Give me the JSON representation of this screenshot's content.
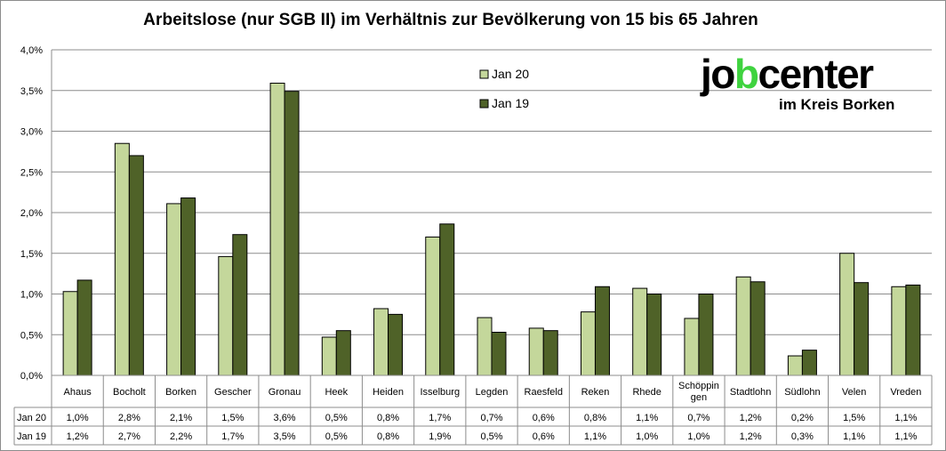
{
  "chart_data": {
    "type": "bar",
    "title": "Arbeitslose (nur SGB II) im Verhältnis zur Bevölkerung von 15 bis 65 Jahren",
    "categories": [
      "Ahaus",
      "Bocholt",
      "Borken",
      "Gescher",
      "Gronau",
      "Heek",
      "Heiden",
      "Isselburg",
      "Legden",
      "Raesfeld",
      "Reken",
      "Rhede",
      "Schöppin\ngen",
      "Stadtlohn",
      "Südlohn",
      "Velen",
      "Vreden"
    ],
    "series": [
      {
        "name": "Jan 20",
        "color": "#c4d79b",
        "values": [
          1.03,
          2.85,
          2.11,
          1.46,
          3.59,
          0.47,
          0.82,
          1.7,
          0.71,
          0.58,
          0.78,
          1.07,
          0.7,
          1.21,
          0.24,
          1.5,
          1.09
        ],
        "labels": [
          "1,0%",
          "2,8%",
          "2,1%",
          "1,5%",
          "3,6%",
          "0,5%",
          "0,8%",
          "1,7%",
          "0,7%",
          "0,6%",
          "0,8%",
          "1,1%",
          "0,7%",
          "1,2%",
          "0,2%",
          "1,5%",
          "1,1%"
        ]
      },
      {
        "name": "Jan 19",
        "color": "#4f6228",
        "values": [
          1.17,
          2.7,
          2.18,
          1.73,
          3.49,
          0.55,
          0.75,
          1.86,
          0.53,
          0.55,
          1.09,
          1.0,
          1.0,
          1.15,
          0.31,
          1.14,
          1.11
        ],
        "labels": [
          "1,2%",
          "2,7%",
          "2,2%",
          "1,7%",
          "3,5%",
          "0,5%",
          "0,8%",
          "1,9%",
          "0,5%",
          "0,6%",
          "1,1%",
          "1,0%",
          "1,0%",
          "1,2%",
          "0,3%",
          "1,1%",
          "1,1%"
        ]
      }
    ],
    "ylim": [
      0,
      4.0
    ],
    "yticks": [
      "0,0%",
      "0,5%",
      "1,0%",
      "1,5%",
      "2,0%",
      "2,5%",
      "3,0%",
      "3,5%",
      "4,0%"
    ],
    "grid": true,
    "legend_position": "top-center",
    "data_table": true
  },
  "logo": {
    "word_start": "jo",
    "word_highlight": "b",
    "word_end": "center",
    "subtitle": "im Kreis Borken",
    "highlight_color": "#3fd33f"
  }
}
